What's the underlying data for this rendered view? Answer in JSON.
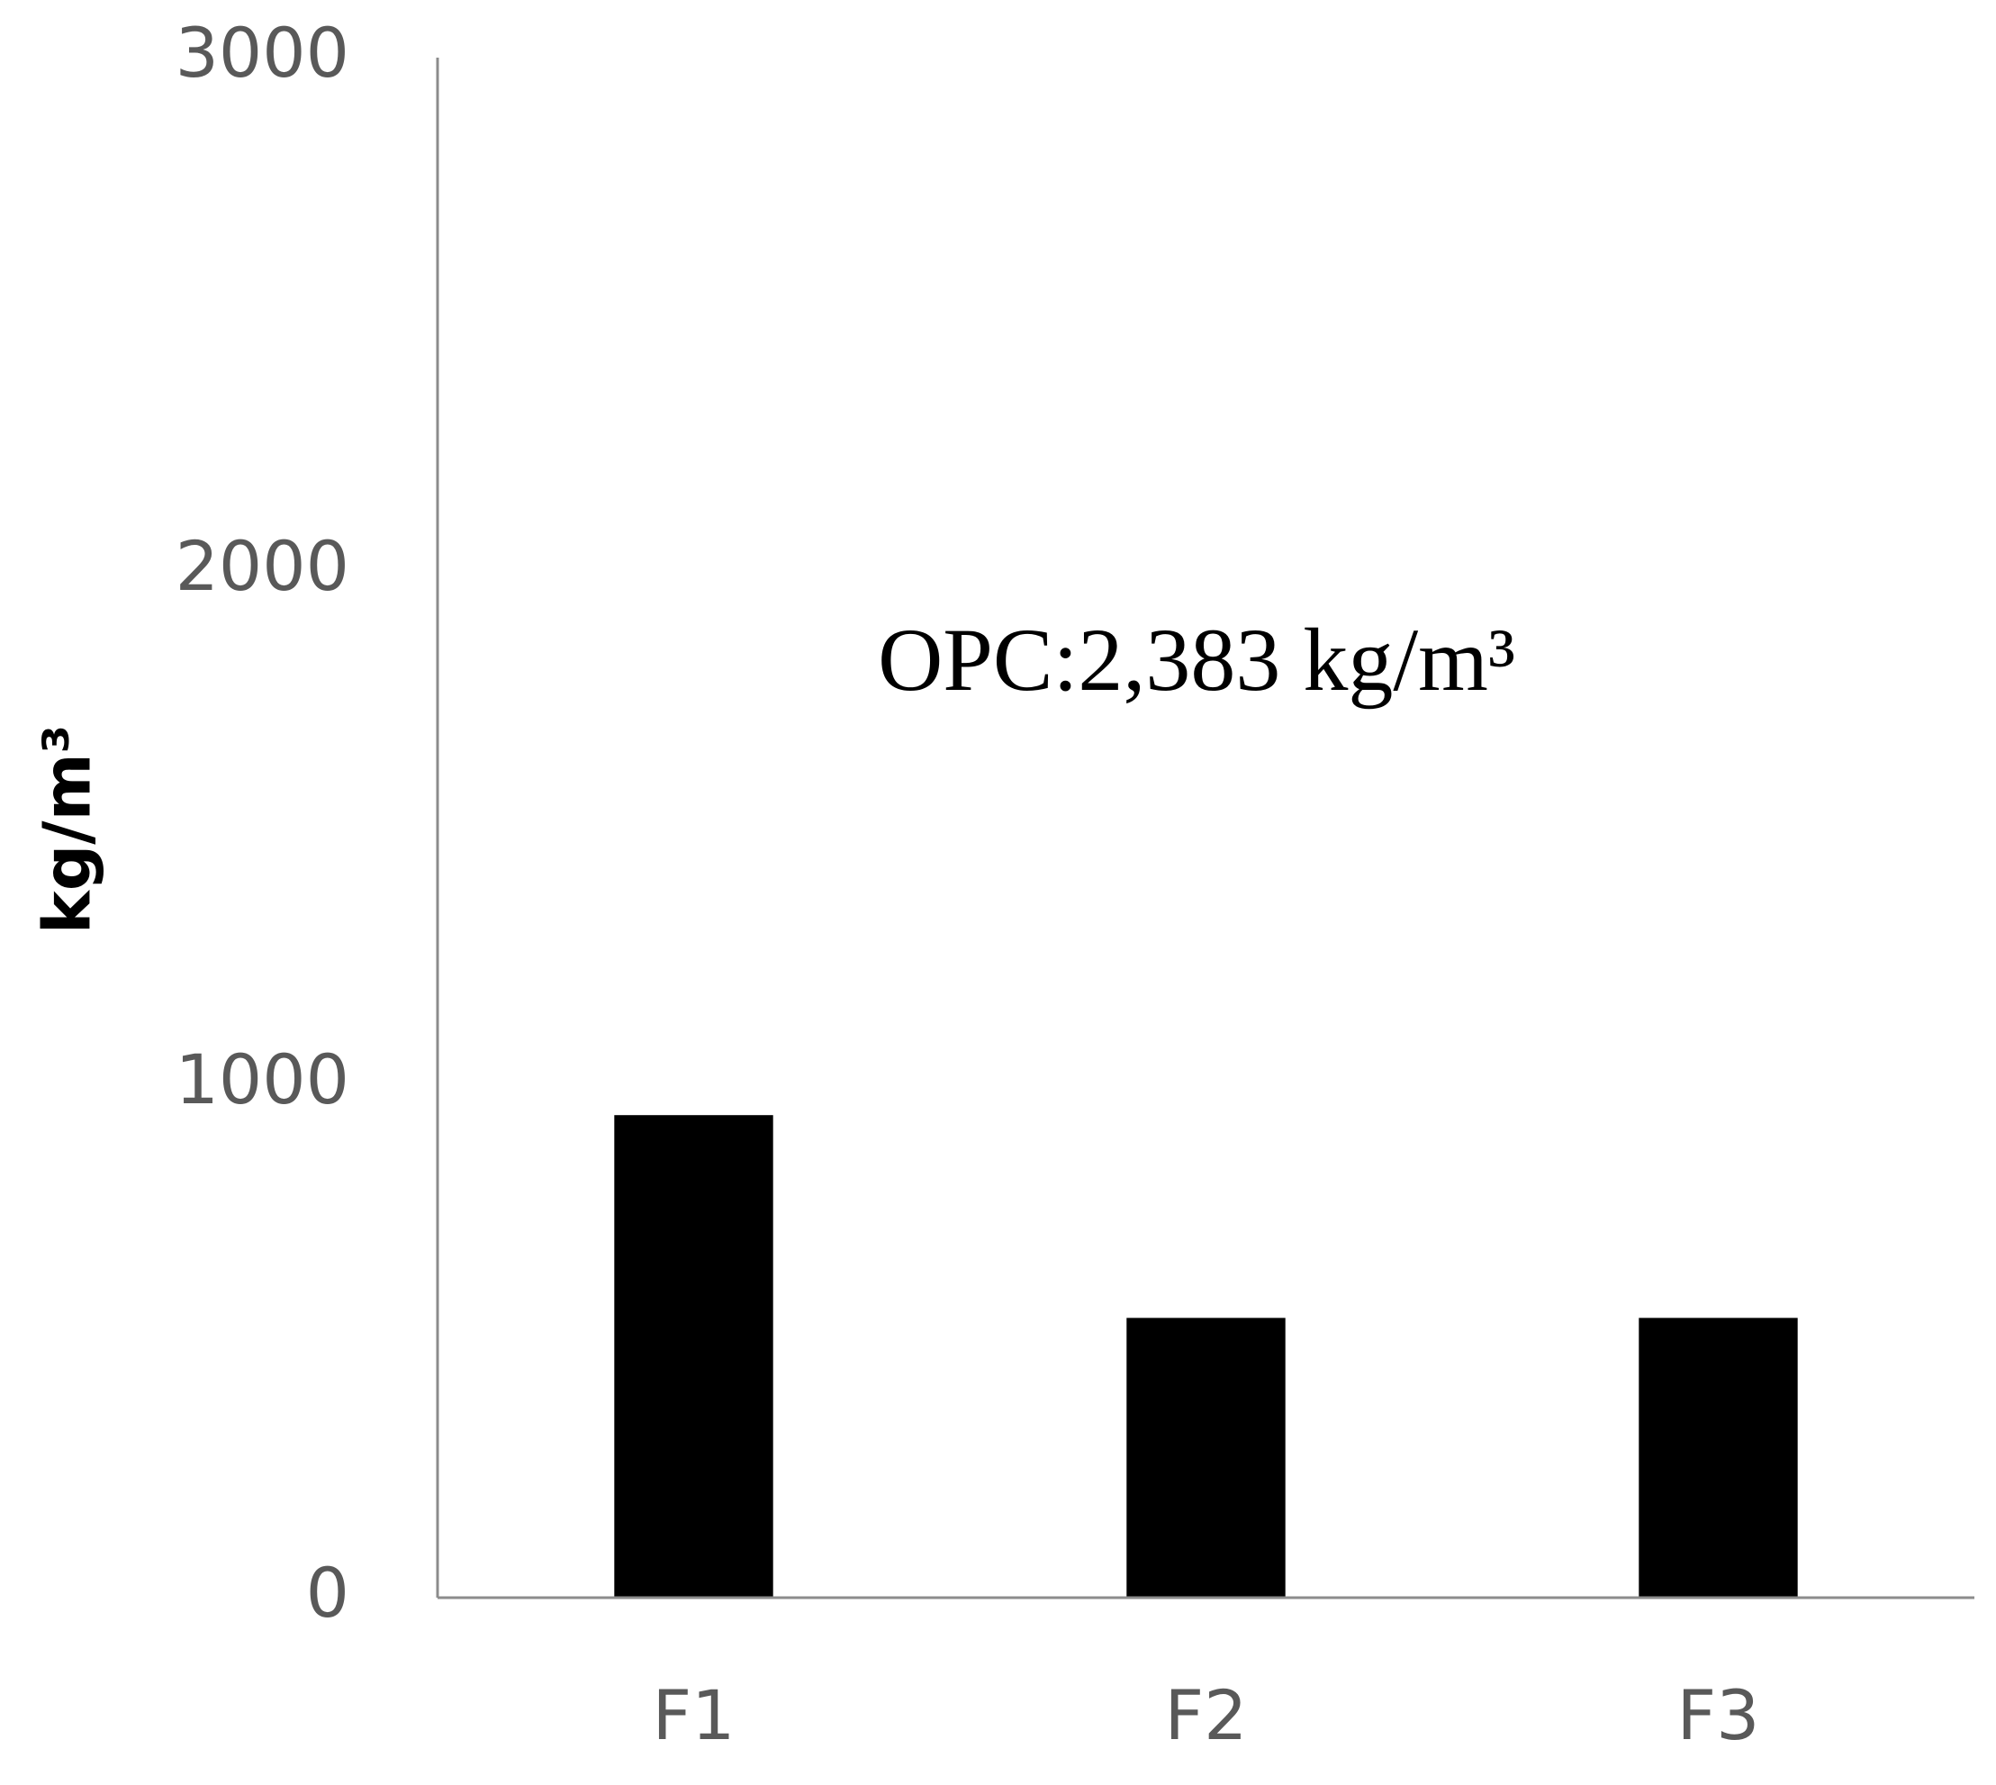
{
  "chart_data": {
    "type": "bar",
    "y_label": "kg/m³",
    "annotation": "OPC:2,383 kg/m³",
    "categories": [
      "F1",
      "F2",
      "F3"
    ],
    "values": [
      940,
      545,
      545
    ],
    "color": "#000000",
    "ylim": [
      0,
      3000
    ],
    "yticks": [
      0,
      1000,
      2000,
      3000
    ],
    "grid": false
  }
}
